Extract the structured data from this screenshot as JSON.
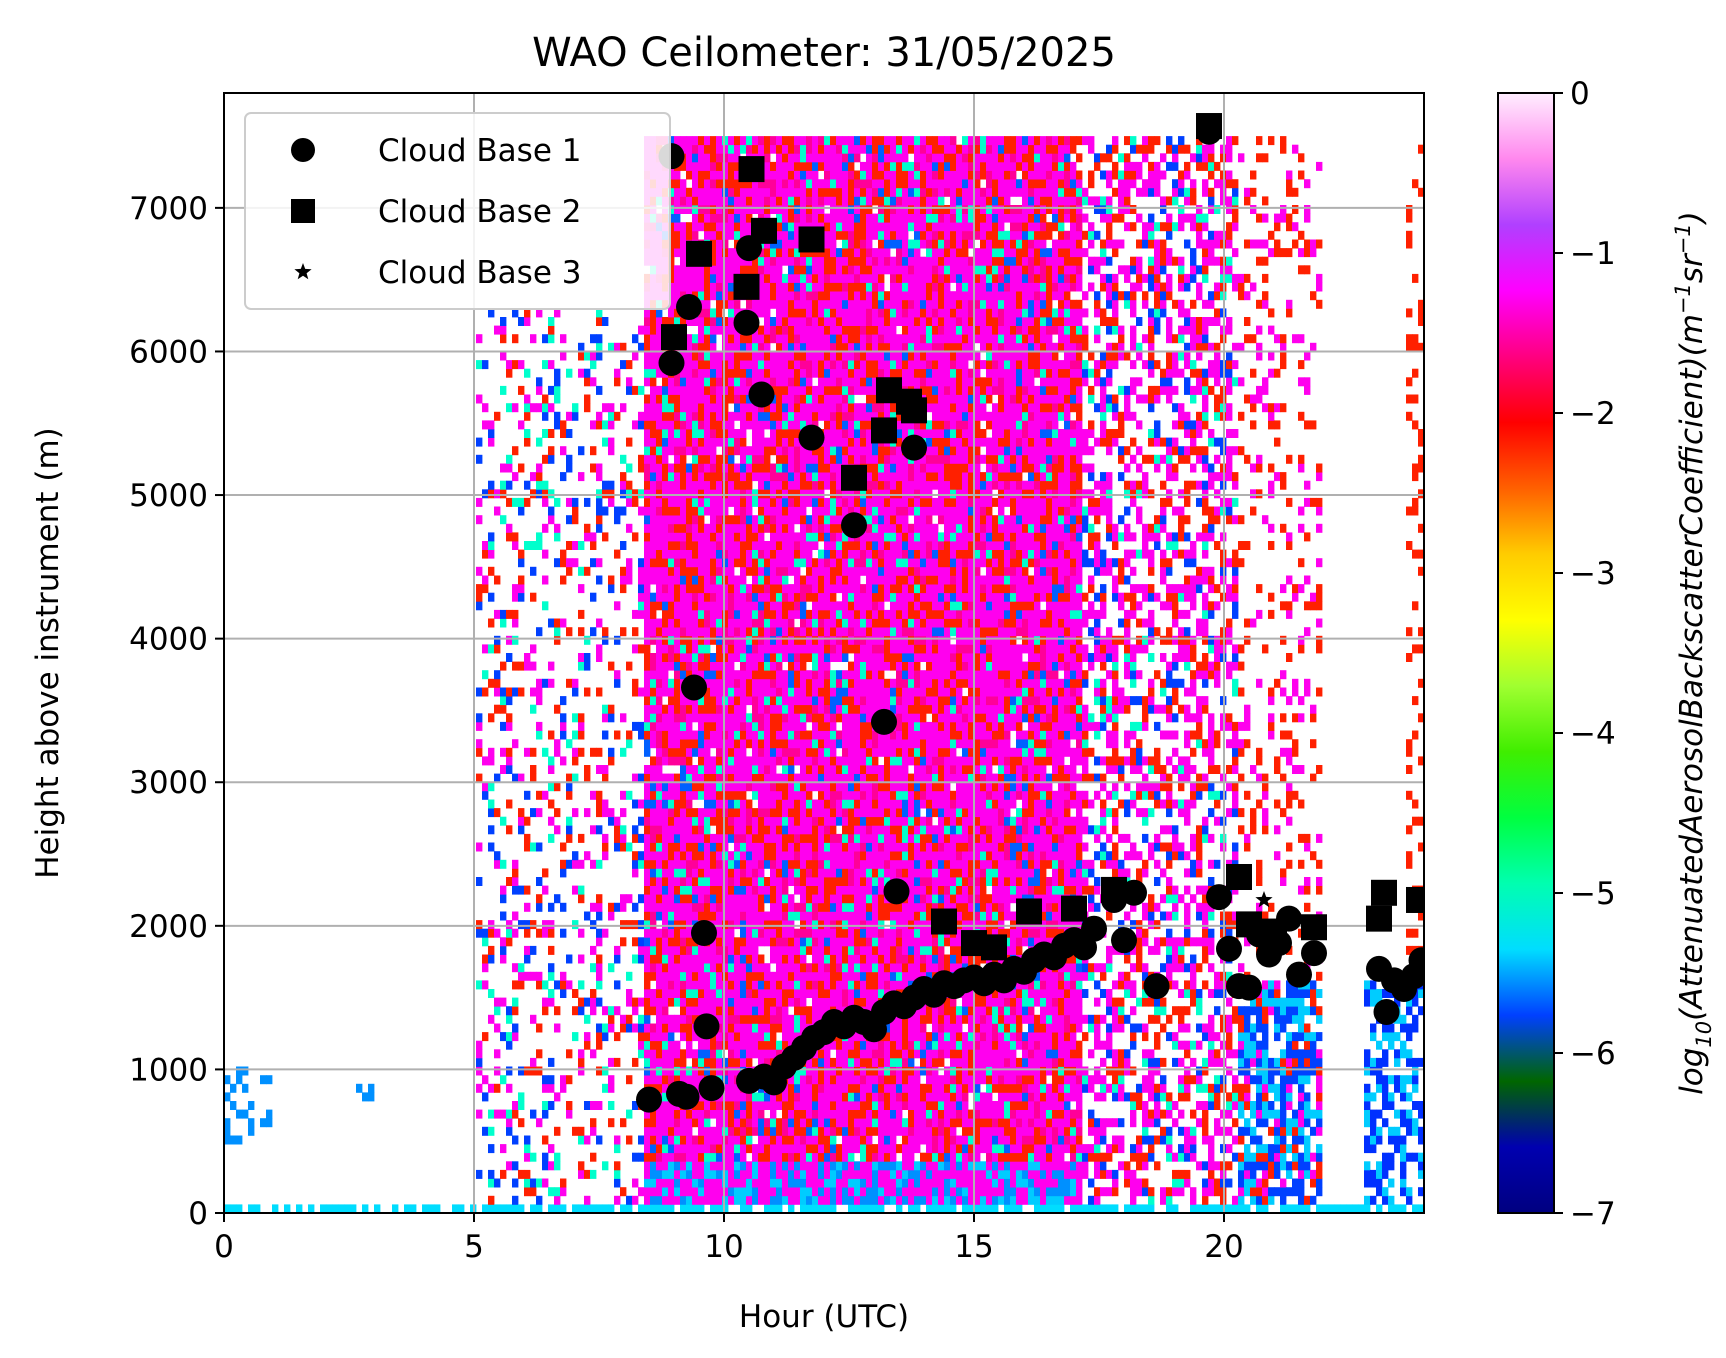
{
  "chart_data": {
    "type": "heatmap",
    "title": "WAO Ceilometer: 31/05/2025",
    "xlabel": "Hour (UTC)",
    "ylabel": "Height above instrument (m)",
    "xlim": [
      0,
      24
    ],
    "ylim": [
      0,
      7800
    ],
    "x_ticks": [
      0,
      5,
      10,
      15,
      20
    ],
    "y_ticks": [
      0,
      1000,
      2000,
      3000,
      4000,
      5000,
      6000,
      7000
    ],
    "grid": true,
    "legend_position": "top-left",
    "colorbar": {
      "label_prefix": "log",
      "label_sub": "10",
      "label_main": "(AttenuatedAerosolBackscatterCoefficient)(m",
      "label_unit_a": "−1",
      "label_unit_mid": "sr",
      "label_unit_b": "−1",
      "label_close": ")",
      "range": [
        -7,
        0
      ],
      "ticks": [
        0,
        -1,
        -2,
        -3,
        -4,
        -5,
        -6,
        -7
      ],
      "tick_labels": [
        "0",
        "−1",
        "−2",
        "−3",
        "−4",
        "−5",
        "−6",
        "−7"
      ],
      "colormap": "gist_ncar",
      "colors": [
        "#000080",
        "#0000b0",
        "#006600",
        "#0040ff",
        "#00ddff",
        "#00ffb0",
        "#00ff40",
        "#40ee00",
        "#a0ff30",
        "#ffff00",
        "#ffcc00",
        "#ff6000",
        "#ff0000",
        "#ff0080",
        "#ff00ff",
        "#b040ff",
        "#ff88ee",
        "#ffeeff"
      ]
    },
    "series": [
      {
        "name": "Cloud Base 1",
        "marker": "circle",
        "color": "#000000",
        "points": [
          [
            8.95,
            7360
          ],
          [
            9.3,
            6310
          ],
          [
            8.95,
            5920
          ],
          [
            10.5,
            6720
          ],
          [
            10.45,
            6200
          ],
          [
            10.75,
            5700
          ],
          [
            11.75,
            5400
          ],
          [
            12.6,
            4790
          ],
          [
            13.8,
            5330
          ],
          [
            9.4,
            3660
          ],
          [
            13.2,
            3420
          ],
          [
            13.45,
            2240
          ],
          [
            9.6,
            1950
          ],
          [
            9.65,
            1300
          ],
          [
            8.5,
            790
          ],
          [
            9.1,
            830
          ],
          [
            9.25,
            810
          ],
          [
            9.75,
            870
          ],
          [
            10.5,
            920
          ],
          [
            10.8,
            950
          ],
          [
            11.0,
            910
          ],
          [
            11.2,
            1020
          ],
          [
            11.4,
            1080
          ],
          [
            11.6,
            1150
          ],
          [
            11.8,
            1220
          ],
          [
            12.0,
            1260
          ],
          [
            12.2,
            1330
          ],
          [
            12.4,
            1300
          ],
          [
            12.6,
            1360
          ],
          [
            12.8,
            1330
          ],
          [
            13.0,
            1280
          ],
          [
            13.2,
            1400
          ],
          [
            13.4,
            1460
          ],
          [
            13.6,
            1440
          ],
          [
            13.8,
            1500
          ],
          [
            14.0,
            1560
          ],
          [
            14.2,
            1520
          ],
          [
            14.4,
            1600
          ],
          [
            14.6,
            1580
          ],
          [
            14.8,
            1620
          ],
          [
            15.0,
            1640
          ],
          [
            15.2,
            1600
          ],
          [
            15.4,
            1660
          ],
          [
            15.6,
            1620
          ],
          [
            15.8,
            1700
          ],
          [
            16.0,
            1680
          ],
          [
            16.2,
            1760
          ],
          [
            16.4,
            1800
          ],
          [
            16.6,
            1780
          ],
          [
            16.8,
            1860
          ],
          [
            17.0,
            1900
          ],
          [
            17.2,
            1850
          ],
          [
            17.4,
            1980
          ],
          [
            17.8,
            2180
          ],
          [
            18.0,
            1900
          ],
          [
            18.2,
            2230
          ],
          [
            18.65,
            1580
          ],
          [
            19.9,
            2200
          ],
          [
            20.1,
            1840
          ],
          [
            20.3,
            1580
          ],
          [
            20.5,
            1570
          ],
          [
            20.7,
            1940
          ],
          [
            20.9,
            1800
          ],
          [
            21.1,
            1880
          ],
          [
            21.3,
            2050
          ],
          [
            21.5,
            1660
          ],
          [
            21.8,
            1810
          ],
          [
            23.1,
            1700
          ],
          [
            23.25,
            1400
          ],
          [
            23.4,
            1620
          ],
          [
            23.6,
            1560
          ],
          [
            23.8,
            1650
          ],
          [
            23.95,
            1760
          ],
          [
            19.7,
            7530
          ]
        ]
      },
      {
        "name": "Cloud Base 2",
        "marker": "square",
        "color": "#000000",
        "points": [
          [
            10.55,
            7270
          ],
          [
            9.5,
            6680
          ],
          [
            10.8,
            6840
          ],
          [
            11.75,
            6780
          ],
          [
            10.45,
            6450
          ],
          [
            9.0,
            6100
          ],
          [
            13.3,
            5730
          ],
          [
            13.7,
            5650
          ],
          [
            13.2,
            5450
          ],
          [
            13.8,
            5590
          ],
          [
            12.6,
            5120
          ],
          [
            14.4,
            2030
          ],
          [
            16.1,
            2100
          ],
          [
            17.0,
            2120
          ],
          [
            17.8,
            2250
          ],
          [
            20.3,
            2340
          ],
          [
            21.8,
            1990
          ],
          [
            23.2,
            2230
          ],
          [
            23.1,
            2050
          ],
          [
            23.9,
            2180
          ],
          [
            19.7,
            7570
          ],
          [
            15.0,
            1880
          ],
          [
            15.4,
            1850
          ],
          [
            20.5,
            2010
          ],
          [
            21.0,
            1960
          ]
        ]
      },
      {
        "name": "Cloud Base 3",
        "marker": "star",
        "color": "#000000",
        "points": [
          [
            20.8,
            2180
          ]
        ]
      }
    ]
  }
}
